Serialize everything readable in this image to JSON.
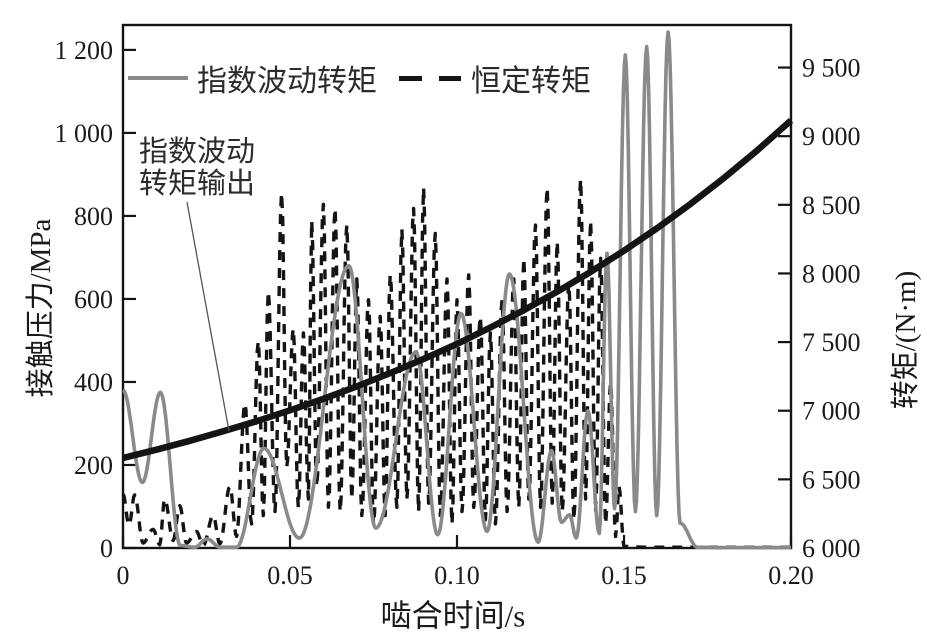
{
  "figure": {
    "background": "#ffffff"
  },
  "annotation": {
    "line1": "指数波动",
    "line2": "转矩输出"
  },
  "chart_data": {
    "type": "line",
    "title": "",
    "xlabel": "啮合时间/s",
    "x_range": [
      0,
      0.2
    ],
    "x_ticks": [
      {
        "v": 0,
        "label": "0"
      },
      {
        "v": 0.05,
        "label": "0.05"
      },
      {
        "v": 0.1,
        "label": "0.10"
      },
      {
        "v": 0.15,
        "label": "0.15"
      },
      {
        "v": 0.2,
        "label": "0.20"
      }
    ],
    "y_left": {
      "label": "接触压力/MPa",
      "range": [
        0,
        1260
      ],
      "ticks": [
        {
          "v": 0,
          "label": "0"
        },
        {
          "v": 200,
          "label": "200"
        },
        {
          "v": 400,
          "label": "400"
        },
        {
          "v": 600,
          "label": "600"
        },
        {
          "v": 800,
          "label": "800"
        },
        {
          "v": 1000,
          "label": "1 000"
        },
        {
          "v": 1200,
          "label": "1 200"
        }
      ]
    },
    "y_right": {
      "label": "转矩/(N·m)",
      "range": [
        6000,
        9810
      ],
      "ticks": [
        {
          "v": 6000,
          "label": "6 000"
        },
        {
          "v": 6500,
          "label": "6 500"
        },
        {
          "v": 7000,
          "label": "7 000"
        },
        {
          "v": 7500,
          "label": "7 500"
        },
        {
          "v": 8000,
          "label": "8 000"
        },
        {
          "v": 8500,
          "label": "8 500"
        },
        {
          "v": 9000,
          "label": "9 000"
        },
        {
          "v": 9500,
          "label": "9 500"
        }
      ]
    },
    "grid": false,
    "legend_position": "top-inside",
    "series": [
      {
        "id": "exponential-fluctuating-torque-pressure",
        "name": "指数波动转矩",
        "axis": "left",
        "style": "solid",
        "color": "#8a8a8a",
        "width": 3.6,
        "smooth": true,
        "points": [
          [
            0,
            380
          ],
          [
            0.0058,
            158
          ],
          [
            0.0112,
            375
          ],
          [
            0.0172,
            6
          ],
          [
            0.0215,
            2
          ],
          [
            0.0252,
            22
          ],
          [
            0.029,
            2
          ],
          [
            0.034,
            2
          ],
          [
            0.0422,
            240
          ],
          [
            0.0528,
            24
          ],
          [
            0.0676,
            680
          ],
          [
            0.0757,
            48
          ],
          [
            0.0877,
            472
          ],
          [
            0.0942,
            32
          ],
          [
            0.1012,
            565
          ],
          [
            0.109,
            40
          ],
          [
            0.1157,
            660
          ],
          [
            0.1243,
            14
          ],
          [
            0.1283,
            235
          ],
          [
            0.1313,
            62
          ],
          [
            0.1337,
            80
          ],
          [
            0.1357,
            24
          ],
          [
            0.1392,
            330
          ],
          [
            0.1426,
            35
          ],
          [
            0.1449,
            710
          ],
          [
            0.1472,
            95
          ],
          [
            0.1504,
            1188
          ],
          [
            0.1534,
            88
          ],
          [
            0.1568,
            1208
          ],
          [
            0.1598,
            78
          ],
          [
            0.1632,
            1243
          ],
          [
            0.1668,
            60
          ],
          [
            0.172,
            2
          ],
          [
            0.178,
            1
          ],
          [
            0.186,
            1
          ],
          [
            0.193,
            1
          ],
          [
            0.2,
            1
          ]
        ]
      },
      {
        "id": "constant-torque-pressure",
        "name": "恒定转矩",
        "axis": "left",
        "style": "dashed",
        "dash": [
          10,
          8
        ],
        "color": "#141414",
        "width": 3.4,
        "smooth": true,
        "points": [
          [
            0,
            130
          ],
          [
            0.0018,
            55
          ],
          [
            0.0035,
            128
          ],
          [
            0.006,
            12
          ],
          [
            0.009,
            45
          ],
          [
            0.011,
            8
          ],
          [
            0.0125,
            118
          ],
          [
            0.015,
            18
          ],
          [
            0.017,
            102
          ],
          [
            0.019,
            12
          ],
          [
            0.022,
            40
          ],
          [
            0.024,
            6
          ],
          [
            0.027,
            78
          ],
          [
            0.029,
            10
          ],
          [
            0.032,
            148
          ],
          [
            0.034,
            28
          ],
          [
            0.0365,
            348
          ],
          [
            0.0385,
            58
          ],
          [
            0.0405,
            498
          ],
          [
            0.042,
            78
          ],
          [
            0.0435,
            618
          ],
          [
            0.0455,
            88
          ],
          [
            0.0475,
            855
          ],
          [
            0.049,
            195
          ],
          [
            0.051,
            528
          ],
          [
            0.0525,
            98
          ],
          [
            0.054,
            518
          ],
          [
            0.0555,
            118
          ],
          [
            0.0565,
            788
          ],
          [
            0.058,
            148
          ],
          [
            0.06,
            828
          ],
          [
            0.0615,
            98
          ],
          [
            0.0635,
            818
          ],
          [
            0.065,
            88
          ],
          [
            0.067,
            778
          ],
          [
            0.0685,
            118
          ],
          [
            0.07,
            648
          ],
          [
            0.0715,
            78
          ],
          [
            0.0735,
            598
          ],
          [
            0.075,
            58
          ],
          [
            0.077,
            558
          ],
          [
            0.0785,
            78
          ],
          [
            0.08,
            658
          ],
          [
            0.082,
            98
          ],
          [
            0.0835,
            768
          ],
          [
            0.085,
            118
          ],
          [
            0.087,
            818
          ],
          [
            0.0885,
            88
          ],
          [
            0.09,
            868
          ],
          [
            0.0915,
            108
          ],
          [
            0.0935,
            758
          ],
          [
            0.095,
            78
          ],
          [
            0.097,
            648
          ],
          [
            0.0985,
            58
          ],
          [
            0.1,
            598
          ],
          [
            0.1015,
            88
          ],
          [
            0.1035,
            658
          ],
          [
            0.105,
            98
          ],
          [
            0.107,
            558
          ],
          [
            0.1085,
            68
          ],
          [
            0.11,
            518
          ],
          [
            0.1115,
            58
          ],
          [
            0.1135,
            598
          ],
          [
            0.115,
            88
          ],
          [
            0.117,
            648
          ],
          [
            0.1185,
            98
          ],
          [
            0.12,
            698
          ],
          [
            0.1215,
            118
          ],
          [
            0.1235,
            778
          ],
          [
            0.125,
            98
          ],
          [
            0.127,
            868
          ],
          [
            0.1285,
            108
          ],
          [
            0.13,
            738
          ],
          [
            0.1315,
            88
          ],
          [
            0.1335,
            638
          ],
          [
            0.135,
            68
          ],
          [
            0.137,
            888
          ],
          [
            0.1385,
            118
          ],
          [
            0.14,
            788
          ],
          [
            0.1415,
            88
          ],
          [
            0.143,
            698
          ],
          [
            0.1445,
            58
          ],
          [
            0.146,
            398
          ],
          [
            0.1475,
            28
          ],
          [
            0.1485,
            148
          ],
          [
            0.15,
            4
          ],
          [
            0.156,
            2
          ],
          [
            0.163,
            2
          ],
          [
            0.17,
            2
          ],
          [
            0.178,
            2
          ],
          [
            0.186,
            2
          ],
          [
            0.194,
            2
          ],
          [
            0.2,
            2
          ]
        ]
      },
      {
        "id": "torque-output",
        "name": "指数波动转矩输出",
        "axis": "right",
        "style": "solid",
        "color": "#141414",
        "width": 6.5,
        "smooth": false,
        "points": [
          [
            0,
            6656
          ],
          [
            0.01,
            6716
          ],
          [
            0.02,
            6781
          ],
          [
            0.03,
            6850
          ],
          [
            0.04,
            6924
          ],
          [
            0.05,
            7003
          ],
          [
            0.06,
            7087
          ],
          [
            0.07,
            7177
          ],
          [
            0.08,
            7274
          ],
          [
            0.09,
            7377
          ],
          [
            0.1,
            7487
          ],
          [
            0.11,
            7606
          ],
          [
            0.12,
            7732
          ],
          [
            0.13,
            7867
          ],
          [
            0.14,
            8011
          ],
          [
            0.15,
            8166
          ],
          [
            0.16,
            8331
          ],
          [
            0.17,
            8508
          ],
          [
            0.18,
            8697
          ],
          [
            0.19,
            8899
          ],
          [
            0.2,
            9115
          ]
        ]
      }
    ]
  }
}
